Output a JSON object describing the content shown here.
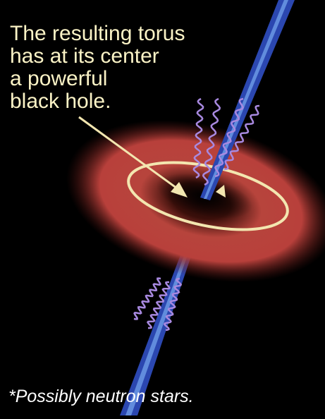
{
  "caption": {
    "lines": [
      "The resulting torus",
      "has at its center",
      "a powerful",
      "black hole."
    ]
  },
  "footnote": "*Possibly neutron stars."
}
